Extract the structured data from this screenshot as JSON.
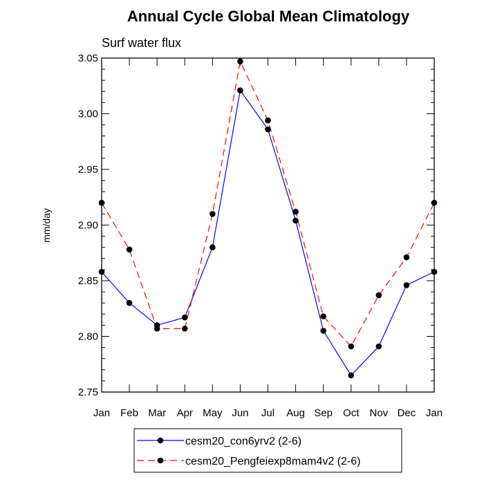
{
  "chart_data": {
    "type": "line",
    "title": "Annual Cycle Global Mean Climatology",
    "subtitle": "Surf water flux",
    "xlabel": "",
    "ylabel": "mm/day",
    "categories": [
      "Jan",
      "Feb",
      "Mar",
      "Apr",
      "May",
      "Jun",
      "Jul",
      "Aug",
      "Sep",
      "Oct",
      "Nov",
      "Dec",
      "Jan"
    ],
    "ylim": [
      2.75,
      3.05
    ],
    "yticks": [
      2.75,
      2.8,
      2.85,
      2.9,
      2.95,
      3.0,
      3.05
    ],
    "ytick_labels": [
      "2.75",
      "2.80",
      "2.85",
      "2.90",
      "2.95",
      "3.00",
      "3.05"
    ],
    "grid": false,
    "legend_position": "bottom",
    "series": [
      {
        "name": "cesm20_con6yrv2 (2-6)",
        "color": "#0000ff",
        "dash": "solid",
        "values": [
          2.858,
          2.83,
          2.81,
          2.817,
          2.88,
          3.021,
          2.986,
          2.904,
          2.805,
          2.765,
          2.791,
          2.846,
          2.858
        ]
      },
      {
        "name": "cesm20_Pengfeiexp8mam4v2 (2-6)",
        "color": "#ff0000",
        "dash": "dashed",
        "values": [
          2.92,
          2.878,
          2.807,
          2.807,
          2.91,
          3.047,
          2.994,
          2.912,
          2.818,
          2.791,
          2.837,
          2.871,
          2.92
        ]
      }
    ]
  }
}
